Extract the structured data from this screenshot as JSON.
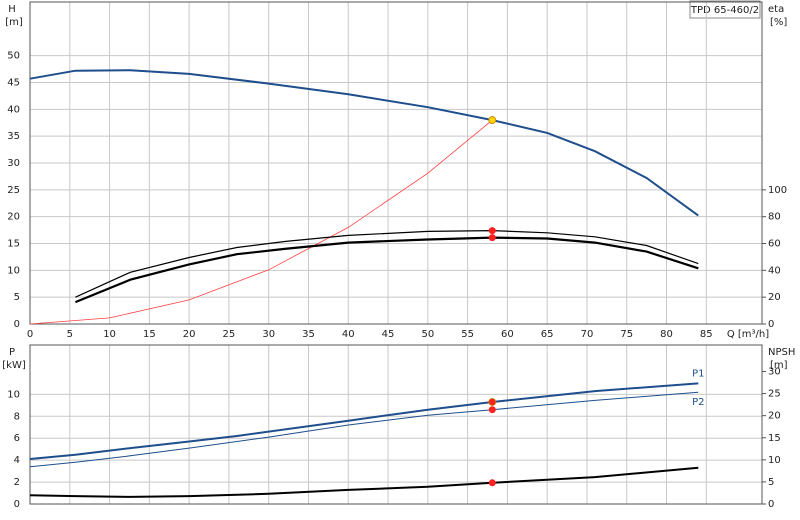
{
  "chart_data": [
    {
      "type": "line",
      "model": "TPD 65-460/2",
      "ylabel": "H",
      "yunit": "[m]",
      "y2label": "eta",
      "y2unit": "[%]",
      "xlabel": "Q [m³/h]",
      "xlim": [
        0,
        92
      ],
      "xticks": [
        0,
        5,
        10,
        15,
        20,
        25,
        30,
        35,
        40,
        45,
        50,
        55,
        60,
        65,
        70,
        75,
        80,
        85
      ],
      "ylim": [
        0,
        60
      ],
      "yticks": [
        0,
        5,
        10,
        15,
        20,
        25,
        30,
        35,
        40,
        45,
        50
      ],
      "y2lim": [
        0,
        240
      ],
      "y2ticks": [
        0,
        20,
        40,
        60,
        80,
        100
      ],
      "grid": true,
      "show_xtick_labels": true,
      "series": [
        {
          "color": "#1f4e8c",
          "width": 2,
          "axis": "y",
          "x": [
            0,
            5.7,
            12.6,
            20,
            30,
            40,
            50,
            58.1,
            65,
            71,
            77.5,
            84
          ],
          "values": [
            45.7,
            47.2,
            47.3,
            46.6,
            44.8,
            42.8,
            40.4,
            38,
            35.6,
            32.2,
            27.2,
            20.2
          ]
        },
        {
          "color": "#ff4040",
          "width": 0.8,
          "axis": "y",
          "x": [
            0,
            10,
            20,
            30,
            40,
            50,
            58.1
          ],
          "values": [
            0,
            1.13,
            4.5,
            10.1,
            18,
            28.1,
            38
          ]
        },
        {
          "color": "#000000",
          "width": 1.2,
          "axis": "y2",
          "x": [
            5.7,
            12.6,
            20,
            26,
            32,
            40,
            50,
            58.1,
            65,
            71,
            77.5,
            84
          ],
          "values": [
            20,
            38.5,
            49.6,
            57,
            61.5,
            66,
            69,
            69.6,
            68,
            65,
            58.5,
            45
          ]
        },
        {
          "color": "#000000",
          "width": 2.2,
          "axis": "y2",
          "x": [
            5.7,
            12.6,
            20,
            26,
            32,
            40,
            50,
            58.1,
            65,
            71,
            77.5,
            84
          ],
          "values": [
            16.3,
            33,
            44.4,
            52,
            56,
            60.7,
            63,
            64.4,
            63.7,
            60.7,
            54,
            41.5
          ]
        }
      ],
      "markers": [
        {
          "x": 58.1,
          "y": 38,
          "axis": "y",
          "color": "#ffd400"
        },
        {
          "x": 58.1,
          "y": 69.6,
          "axis": "y2",
          "color": "#ff2020"
        },
        {
          "x": 58.1,
          "y": 64.4,
          "axis": "y2",
          "color": "#ff2020"
        }
      ]
    },
    {
      "type": "line",
      "ylabel": "P",
      "yunit": "[kW]",
      "y2label": "NPSH",
      "y2unit": "[m]",
      "xlim": [
        0,
        92
      ],
      "xticks": [
        0,
        5,
        10,
        15,
        20,
        25,
        30,
        35,
        40,
        45,
        50,
        55,
        60,
        65,
        70,
        75,
        80,
        85
      ],
      "ylim": [
        0,
        14.5
      ],
      "yticks": [
        0,
        2,
        4,
        6,
        8,
        10
      ],
      "y2lim": [
        0,
        36
      ],
      "y2ticks": [
        0,
        5,
        10,
        15,
        20,
        25,
        30
      ],
      "grid": true,
      "show_xtick_labels": false,
      "series": [
        {
          "name": "P1",
          "color": "#1f4e8c",
          "width": 2,
          "axis": "y",
          "x": [
            0,
            5.7,
            12.6,
            20,
            26,
            40,
            50,
            58.1,
            71,
            84
          ],
          "values": [
            4.1,
            4.5,
            5.1,
            5.7,
            6.2,
            7.6,
            8.6,
            9.3,
            10.3,
            11
          ]
        },
        {
          "name": "P2",
          "color": "#1f4e8c",
          "width": 1,
          "axis": "y",
          "x": [
            0,
            5.7,
            12.6,
            20,
            30,
            40,
            50,
            58.1,
            71,
            84
          ],
          "values": [
            3.4,
            3.8,
            4.4,
            5.1,
            6.1,
            7.2,
            8.1,
            8.6,
            9.45,
            10.2
          ]
        },
        {
          "color": "#000000",
          "width": 2,
          "axis": "y2",
          "x": [
            0,
            5.7,
            12.6,
            20,
            30,
            40,
            50,
            58.1,
            71,
            84
          ],
          "values": [
            2,
            1.8,
            1.6,
            1.8,
            2.3,
            3.2,
            3.9,
            4.8,
            6.1,
            8.2
          ]
        }
      ],
      "markers": [
        {
          "x": 58.1,
          "y": 9.3,
          "axis": "y",
          "color": "#ff2020"
        },
        {
          "x": 58.1,
          "y": 8.6,
          "axis": "y",
          "color": "#ff2020"
        },
        {
          "x": 58.1,
          "y": 4.8,
          "axis": "y2",
          "color": "#ff2020"
        }
      ]
    }
  ]
}
